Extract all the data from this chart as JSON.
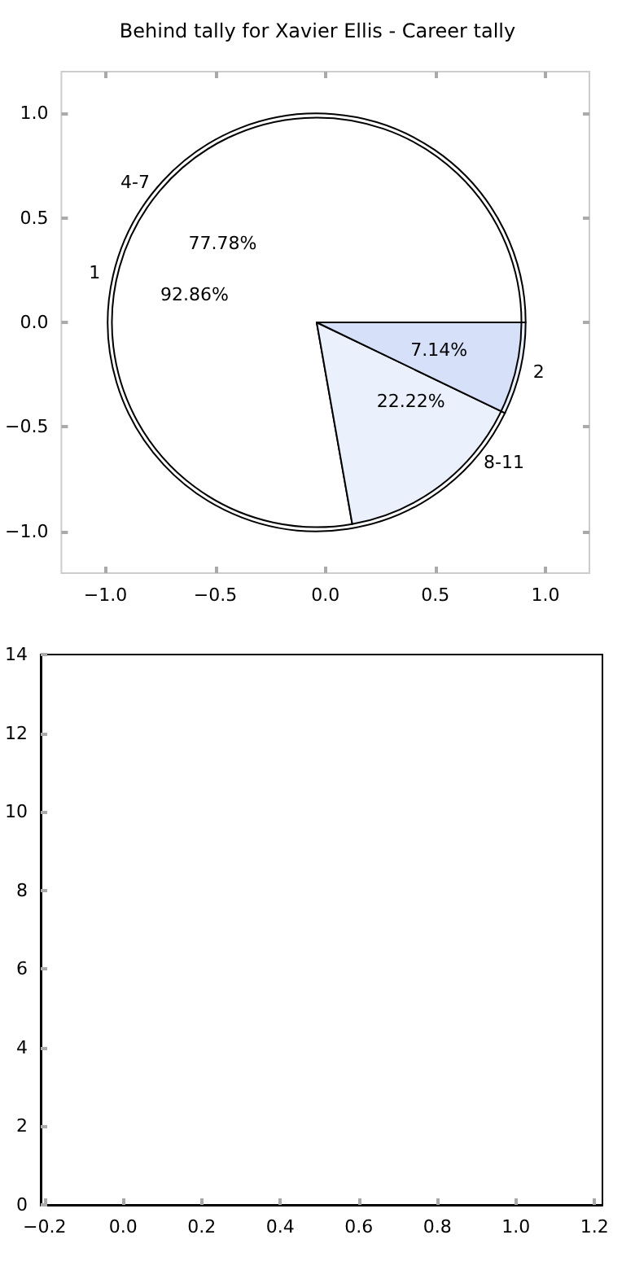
{
  "chart_data": [
    {
      "type": "scatter",
      "title": "Behind tally for Xavier Ellis - Career tally",
      "xlim": [
        -1.2,
        1.2
      ],
      "ylim": [
        -1.2,
        1.2
      ],
      "xticks": [
        {
          "value": -1,
          "label": "−1.0"
        },
        {
          "value": -0.5,
          "label": "−0.5"
        },
        {
          "value": 0,
          "label": "0.0"
        },
        {
          "value": 0.5,
          "label": "0.5"
        },
        {
          "value": 1,
          "label": "1.0"
        }
      ],
      "yticks": [
        {
          "value": -1,
          "label": "−1.0"
        },
        {
          "value": -0.5,
          "label": "−0.5"
        },
        {
          "value": 0,
          "label": "0.0"
        },
        {
          "value": 0.5,
          "label": "0.5"
        },
        {
          "value": 1,
          "label": "1.0"
        }
      ]
    },
    {
      "type": "pie",
      "categories": [
        "1",
        "2"
      ],
      "values": [
        92.86,
        7.14
      ],
      "colors": [
        "#ffffff",
        "#eaf0fc"
      ],
      "value_labels": [
        "92.86%",
        "7.14%"
      ]
    },
    {
      "type": "pie",
      "categories": [
        "4-7",
        "8-11"
      ],
      "values": [
        77.78,
        22.22
      ],
      "colors": [
        "#ffffff",
        "#eaf0fc"
      ],
      "value_labels": [
        "77.78%",
        "22.22%"
      ]
    },
    {
      "type": "scatter",
      "xlim": [
        -0.21,
        1.22
      ],
      "ylim": [
        0,
        14
      ],
      "xticks": [
        {
          "value": -0.2,
          "label": "−0.2"
        },
        {
          "value": 0,
          "label": "0.0"
        },
        {
          "value": 0.2,
          "label": "0.2"
        },
        {
          "value": 0.4,
          "label": "0.4"
        },
        {
          "value": 0.6,
          "label": "0.6"
        },
        {
          "value": 0.8,
          "label": "0.8"
        },
        {
          "value": 1,
          "label": "1.0"
        },
        {
          "value": 1.2,
          "label": "1.2"
        }
      ],
      "yticks": [
        0,
        2,
        4,
        6,
        8,
        10,
        12,
        14
      ]
    }
  ]
}
